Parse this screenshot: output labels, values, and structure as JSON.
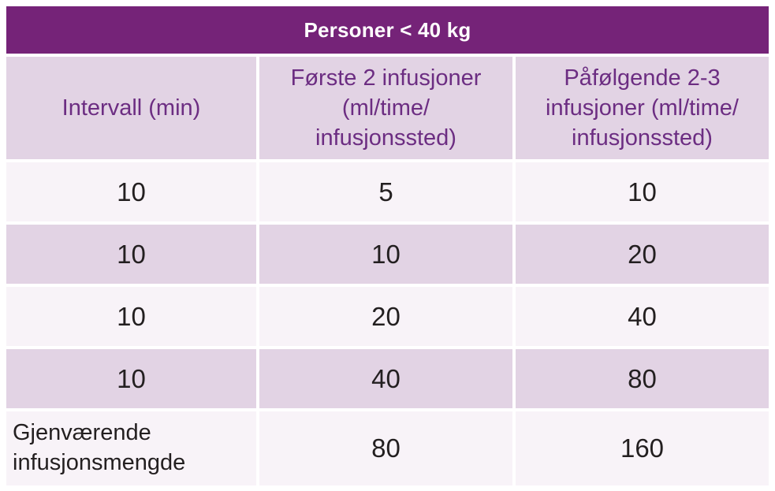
{
  "table": {
    "title": "Personer < 40 kg",
    "columns": [
      "Intervall (min)",
      "Første 2 infusjoner\n(ml/time/\ninfusjonssted)",
      "Påfølgende 2-3\ninfusjoner (ml/time/\ninfusjonssted)"
    ],
    "rows": [
      {
        "cells": [
          "10",
          "5",
          "10"
        ]
      },
      {
        "cells": [
          "10",
          "10",
          "20"
        ]
      },
      {
        "cells": [
          "10",
          "20",
          "40"
        ]
      },
      {
        "cells": [
          "10",
          "40",
          "80"
        ]
      },
      {
        "cells": [
          "Gjenværende\ninfusjonsmengde",
          "80",
          "160"
        ]
      }
    ],
    "colors": {
      "title_band_bg": "#752378",
      "title_text": "#FFFFFF",
      "header_bg": "#E2D3E4",
      "header_text": "#6C2D82",
      "row_light_bg": "#F8F3F8",
      "row_shaded_bg": "#E2D3E4",
      "data_text": "#231F20",
      "gap_color": "#FFFFFF"
    }
  }
}
